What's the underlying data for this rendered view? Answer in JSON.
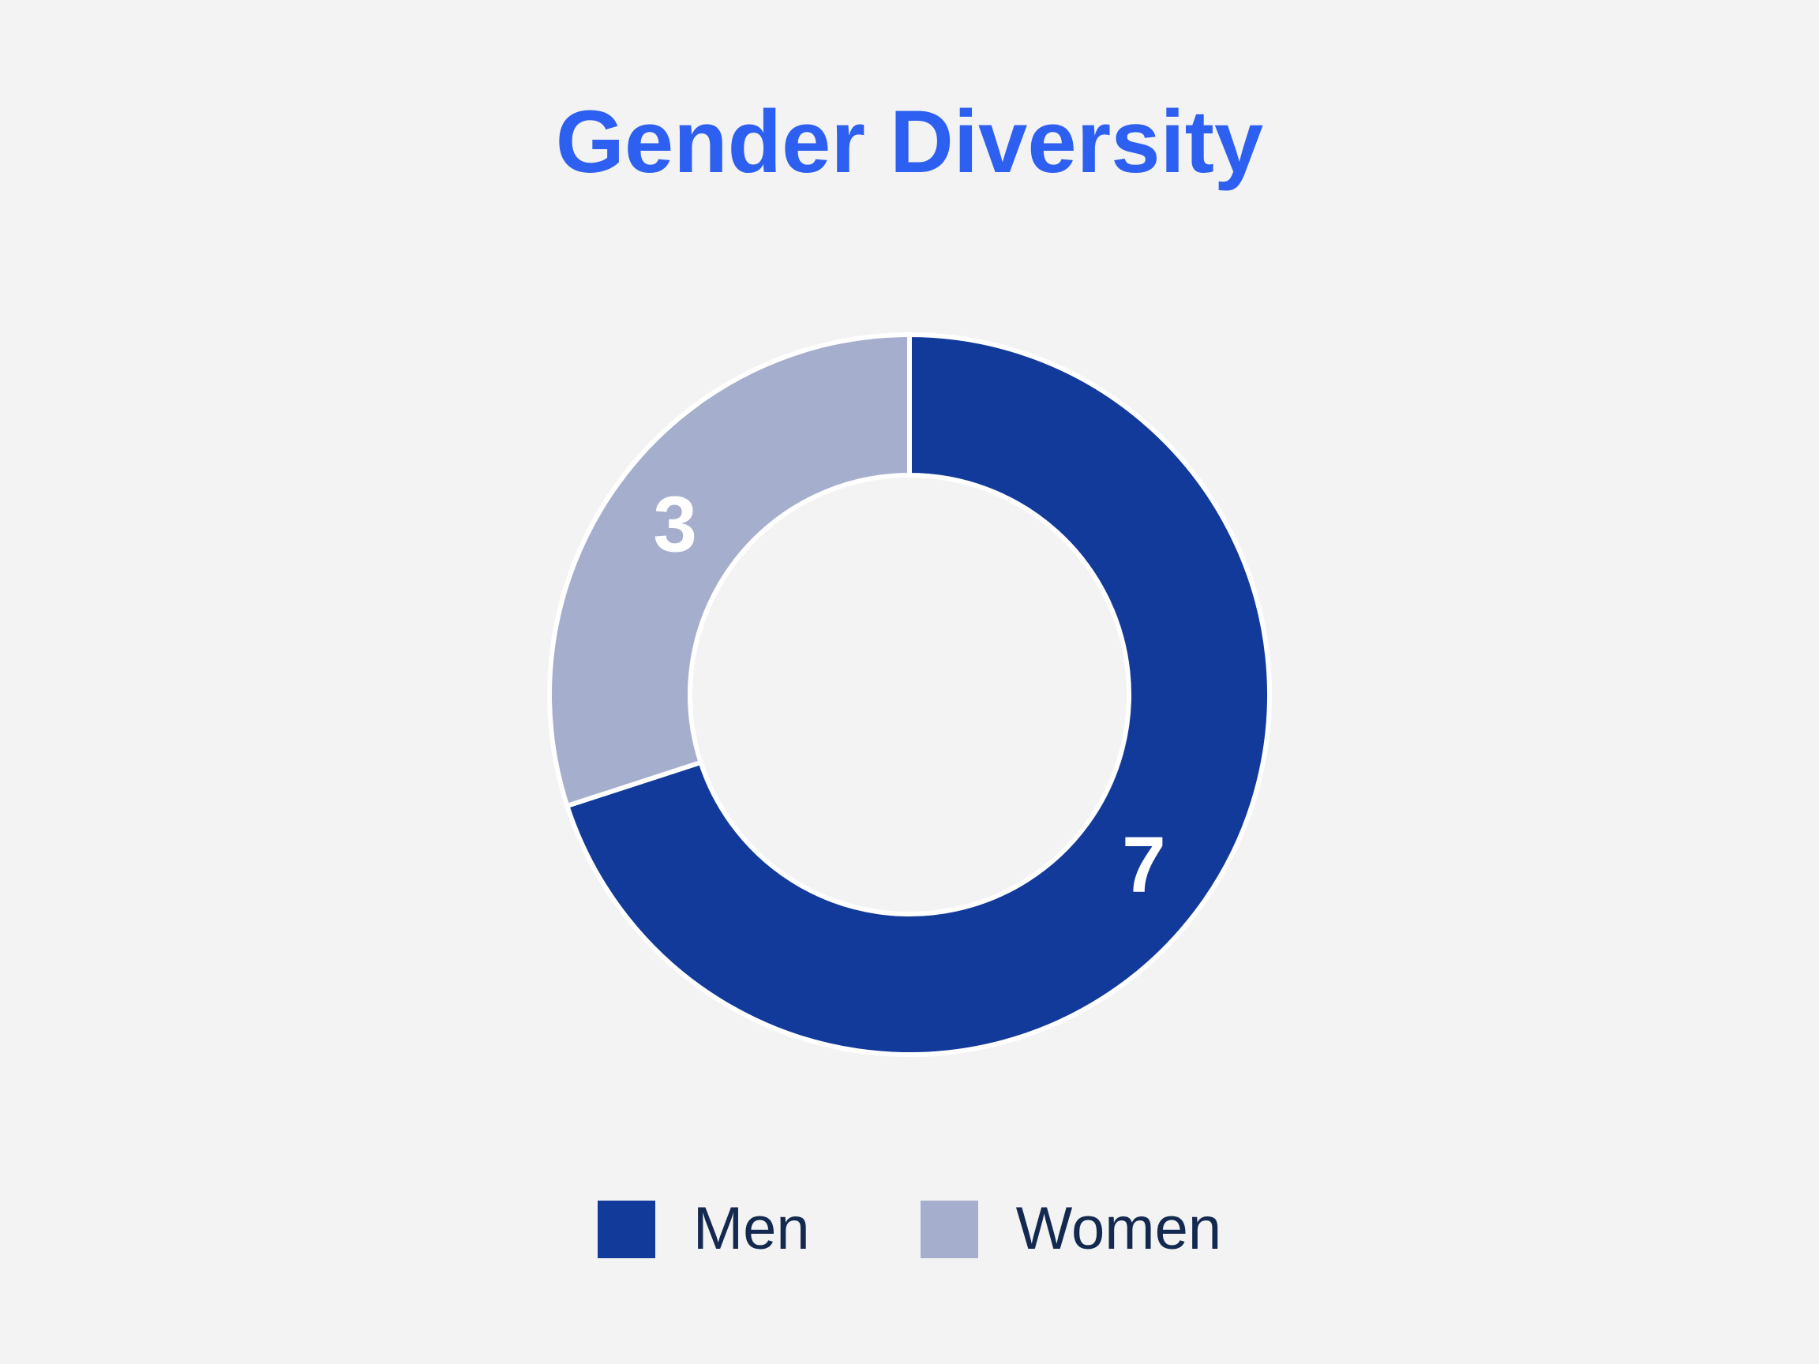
{
  "title": "Gender Diversity",
  "chart_data": {
    "type": "pie",
    "subtype": "donut",
    "title": "Gender Diversity",
    "series": [
      {
        "name": "Men",
        "value": 7,
        "color": "#123A9B"
      },
      {
        "name": "Women",
        "value": 3,
        "color": "#A6AECD"
      }
    ],
    "data_labels": [
      7,
      3
    ],
    "start_angle_deg": 0,
    "direction": "clockwise",
    "inner_radius_ratio": 0.61,
    "legend_position": "bottom"
  },
  "colors": {
    "background": "#F3F3F3",
    "title_text": "#2D5FF0",
    "legend_text": "#13294F",
    "slice_label_text": "#FFFFFF",
    "slice_separator": "#FFFFFF"
  }
}
